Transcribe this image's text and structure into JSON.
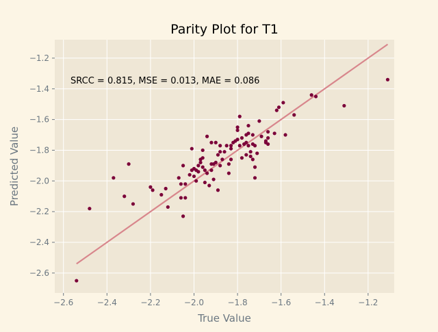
{
  "chart_data": {
    "type": "scatter",
    "title": "Parity Plot for T1",
    "xlabel": "True Value",
    "ylabel": "Predicted Value",
    "annotation": "SRCC = 0.815, MSE = 0.013, MAE = 0.086",
    "xlim": [
      -2.64,
      -1.08
    ],
    "ylim": [
      -2.73,
      -1.08
    ],
    "xticks": [
      -2.6,
      -2.4,
      -2.2,
      -2.0,
      -1.8,
      -1.6,
      -1.4,
      -1.2
    ],
    "yticks": [
      -2.6,
      -2.4,
      -2.2,
      -2.0,
      -1.8,
      -1.6,
      -1.4,
      -1.2
    ],
    "xtick_labels": [
      "−2.6",
      "−2.4",
      "−2.2",
      "−2.0",
      "−1.8",
      "−1.6",
      "−1.4",
      "−1.2"
    ],
    "ytick_labels": [
      "−2.6",
      "−2.4",
      "−2.2",
      "−2.0",
      "−1.8",
      "−1.6",
      "−1.4",
      "−1.2"
    ],
    "grid": true,
    "fit_line": {
      "x": [
        -2.54,
        -1.11
      ],
      "y": [
        -2.54,
        -1.11
      ],
      "color": "#d8868c"
    },
    "marker_color": "#7b0039",
    "points": [
      [
        -2.54,
        -2.65
      ],
      [
        -2.48,
        -2.18
      ],
      [
        -2.37,
        -1.98
      ],
      [
        -2.32,
        -2.1
      ],
      [
        -2.3,
        -1.89
      ],
      [
        -2.28,
        -2.15
      ],
      [
        -2.2,
        -2.04
      ],
      [
        -2.19,
        -2.06
      ],
      [
        -2.15,
        -2.09
      ],
      [
        -2.13,
        -2.05
      ],
      [
        -2.12,
        -2.17
      ],
      [
        -2.07,
        -1.98
      ],
      [
        -2.06,
        -2.11
      ],
      [
        -2.06,
        -2.02
      ],
      [
        -2.05,
        -1.9
      ],
      [
        -2.05,
        -2.23
      ],
      [
        -2.04,
        -2.11
      ],
      [
        -2.04,
        -2.02
      ],
      [
        -2.02,
        -1.96
      ],
      [
        -2.01,
        -1.93
      ],
      [
        -2.01,
        -1.79
      ],
      [
        -2.0,
        -1.92
      ],
      [
        -2.0,
        -1.97
      ],
      [
        -1.99,
        -1.93
      ],
      [
        -1.99,
        -2.0
      ],
      [
        -1.98,
        -1.9
      ],
      [
        -1.98,
        -1.94
      ],
      [
        -1.97,
        -1.86
      ],
      [
        -1.97,
        -1.88
      ],
      [
        -1.96,
        -1.85
      ],
      [
        -1.96,
        -1.91
      ],
      [
        -1.96,
        -1.8
      ],
      [
        -1.95,
        -2.01
      ],
      [
        -1.95,
        -1.93
      ],
      [
        -1.94,
        -1.71
      ],
      [
        -1.94,
        -1.95
      ],
      [
        -1.93,
        -2.03
      ],
      [
        -1.92,
        -1.75
      ],
      [
        -1.92,
        -1.89
      ],
      [
        -1.92,
        -1.93
      ],
      [
        -1.91,
        -1.99
      ],
      [
        -1.91,
        -1.89
      ],
      [
        -1.9,
        -1.88
      ],
      [
        -1.9,
        -1.75
      ],
      [
        -1.89,
        -1.83
      ],
      [
        -1.89,
        -2.06
      ],
      [
        -1.88,
        -1.77
      ],
      [
        -1.88,
        -1.81
      ],
      [
        -1.88,
        -1.9
      ],
      [
        -1.87,
        -1.86
      ],
      [
        -1.86,
        -1.81
      ],
      [
        -1.85,
        -1.77
      ],
      [
        -1.84,
        -1.89
      ],
      [
        -1.84,
        -1.95
      ],
      [
        -1.83,
        -1.77
      ],
      [
        -1.83,
        -1.79
      ],
      [
        -1.83,
        -1.86
      ],
      [
        -1.82,
        -1.75
      ],
      [
        -1.81,
        -1.74
      ],
      [
        -1.8,
        -1.65
      ],
      [
        -1.8,
        -1.67
      ],
      [
        -1.8,
        -1.73
      ],
      [
        -1.79,
        -1.77
      ],
      [
        -1.79,
        -1.58
      ],
      [
        -1.78,
        -1.85
      ],
      [
        -1.78,
        -1.72
      ],
      [
        -1.77,
        -1.76
      ],
      [
        -1.76,
        -1.75
      ],
      [
        -1.76,
        -1.83
      ],
      [
        -1.76,
        -1.7
      ],
      [
        -1.75,
        -1.77
      ],
      [
        -1.75,
        -1.64
      ],
      [
        -1.75,
        -1.69
      ],
      [
        -1.74,
        -1.81
      ],
      [
        -1.74,
        -1.84
      ],
      [
        -1.73,
        -1.7
      ],
      [
        -1.73,
        -1.86
      ],
      [
        -1.73,
        -1.76
      ],
      [
        -1.72,
        -1.91
      ],
      [
        -1.72,
        -1.98
      ],
      [
        -1.72,
        -1.77
      ],
      [
        -1.71,
        -1.82
      ],
      [
        -1.7,
        -1.61
      ],
      [
        -1.69,
        -1.71
      ],
      [
        -1.67,
        -1.74
      ],
      [
        -1.67,
        -1.75
      ],
      [
        -1.66,
        -1.72
      ],
      [
        -1.66,
        -1.68
      ],
      [
        -1.66,
        -1.76
      ],
      [
        -1.63,
        -1.69
      ],
      [
        -1.62,
        -1.54
      ],
      [
        -1.61,
        -1.52
      ],
      [
        -1.59,
        -1.49
      ],
      [
        -1.58,
        -1.7
      ],
      [
        -1.54,
        -1.57
      ],
      [
        -1.46,
        -1.44
      ],
      [
        -1.44,
        -1.45
      ],
      [
        -1.31,
        -1.51
      ],
      [
        -1.11,
        -1.34
      ]
    ]
  }
}
